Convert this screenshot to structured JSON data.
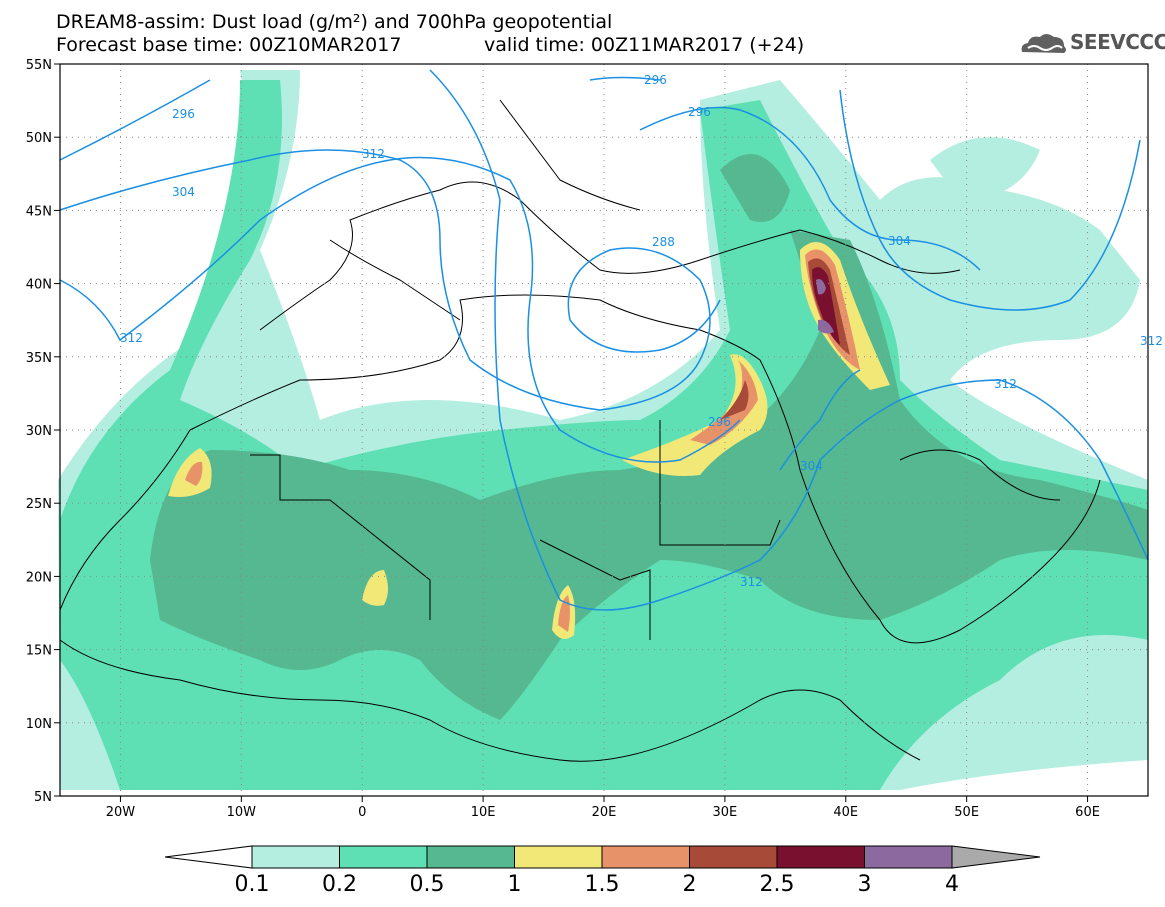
{
  "title": {
    "line1": "DREAM8-assim: Dust load (g/m²) and 700hPa geopotential",
    "line2_base": "Forecast base time: 00Z10MAR2017",
    "line2_valid": "valid time: 00Z11MAR2017 (+24)"
  },
  "logo": {
    "text": "SEEVCCC",
    "icon": "cloud-logo-icon"
  },
  "map": {
    "lon_range": [
      -25,
      65
    ],
    "lat_range": [
      5,
      55
    ],
    "x_ticks": [
      "20W",
      "10W",
      "0",
      "10E",
      "20E",
      "30E",
      "40E",
      "50E",
      "60E"
    ],
    "y_ticks": [
      "55N",
      "50N",
      "45N",
      "40N",
      "35N",
      "30N",
      "25N",
      "20N",
      "15N",
      "10N",
      "5N"
    ],
    "grid": "dotted",
    "isolines": [
      "296",
      "296",
      "296",
      "304",
      "304",
      "304",
      "312",
      "312",
      "312",
      "312",
      "288",
      "296",
      "312"
    ]
  },
  "colorbar": {
    "labels": [
      "0.1",
      "0.2",
      "0.5",
      "1",
      "1.5",
      "2",
      "2.5",
      "3",
      "4"
    ],
    "colors": [
      "#ffffff",
      "#b4eee0",
      "#5fe0b4",
      "#55b890",
      "#f2e878",
      "#e8926a",
      "#a84a38",
      "#7a1030",
      "#8c6aa0",
      "#aaaaaa"
    ]
  }
}
